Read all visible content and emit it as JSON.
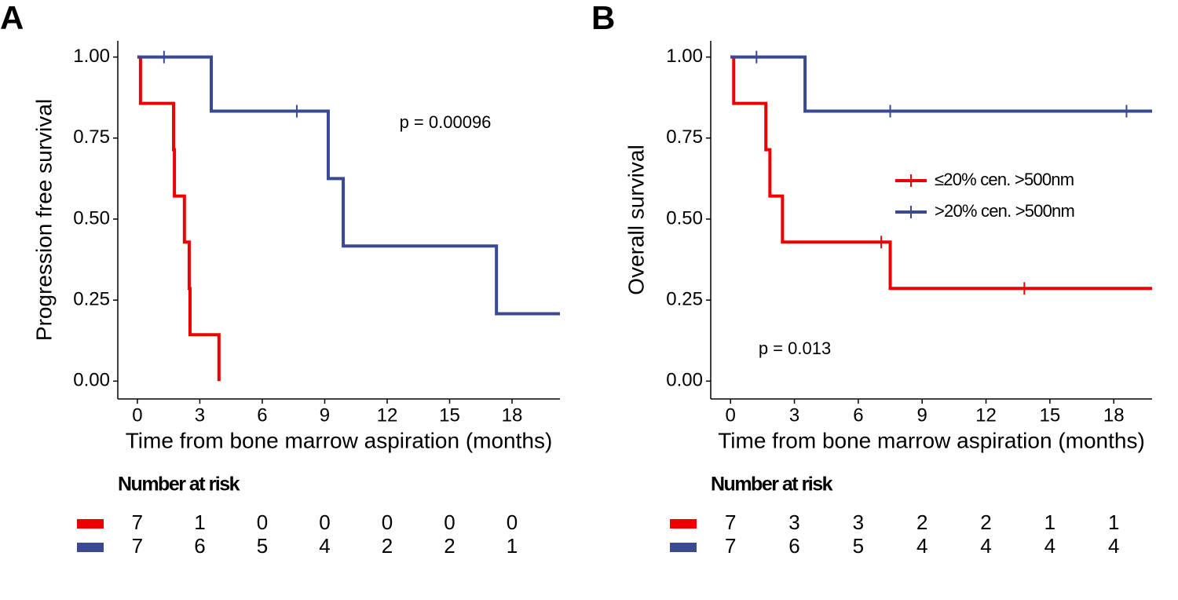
{
  "chart_data": [
    {
      "type": "step",
      "panel": "A",
      "ylabel": "Progression free survival",
      "xlabel": "Time from bone marrow aspiration (months)",
      "annotation": "p = 0.00096",
      "xlim": [
        -0.94,
        20.3
      ],
      "ylim": [
        -0.055,
        1.05
      ],
      "xticks": [
        0,
        3,
        6,
        9,
        12,
        15,
        18
      ],
      "yticks": [
        {
          "value": 0,
          "label": "0.00"
        },
        {
          "value": 0.25,
          "label": "0.25"
        },
        {
          "value": 0.5,
          "label": "0.50"
        },
        {
          "value": 0.75,
          "label": "0.75"
        },
        {
          "value": 1,
          "label": "1.00"
        }
      ],
      "series": [
        {
          "color": "#ee0000",
          "x": [
            0,
            0.15,
            1.74,
            1.78,
            2.26,
            2.49,
            2.53,
            3.92
          ],
          "values": [
            1,
            0.857,
            0.714,
            0.571,
            0.429,
            0.286,
            0.143,
            0
          ],
          "censor_x": [],
          "censor_values": []
        },
        {
          "color": "#3b4992",
          "x": [
            0,
            3.55,
            9.17,
            9.89,
            17.25,
            20.3
          ],
          "values": [
            1,
            0.833,
            0.625,
            0.417,
            0.208,
            0.208
          ],
          "censor_x": [
            1.28,
            7.66
          ],
          "censor_values": [
            1,
            0.833
          ]
        }
      ],
      "risk_title": "Number at risk",
      "risk": [
        [
          7,
          1,
          0,
          0,
          0,
          0,
          0
        ],
        [
          7,
          6,
          5,
          4,
          2,
          2,
          1
        ]
      ]
    },
    {
      "type": "step",
      "panel": "B",
      "ylabel": "Overall survival",
      "xlabel": "Time from bone marrow aspiration (months)",
      "annotation": "p = 0.013",
      "xlim": [
        -0.93,
        19.8
      ],
      "ylim": [
        -0.055,
        1.05
      ],
      "xticks": [
        0,
        3,
        6,
        9,
        12,
        15,
        18
      ],
      "yticks": [
        {
          "value": 0,
          "label": "0.00"
        },
        {
          "value": 0.25,
          "label": "0.25"
        },
        {
          "value": 0.5,
          "label": "0.50"
        },
        {
          "value": 0.75,
          "label": "0.75"
        },
        {
          "value": 1,
          "label": "1.00"
        }
      ],
      "series": [
        {
          "name": "≤20% cen. >500nm",
          "color": "#ee0000",
          "x": [
            0,
            0.15,
            1.66,
            1.85,
            2.44,
            7.5,
            19.8
          ],
          "values": [
            1,
            0.857,
            0.714,
            0.571,
            0.429,
            0.286,
            0.286
          ],
          "censor_x": [
            7.08,
            13.8
          ],
          "censor_values": [
            0.429,
            0.286
          ]
        },
        {
          "name": ">20% cen. >500nm",
          "color": "#3b4992",
          "x": [
            0,
            3.5,
            19.8
          ],
          "values": [
            1,
            0.833,
            0.833
          ],
          "censor_x": [
            1.22,
            7.5,
            18.6
          ],
          "censor_values": [
            1,
            0.833,
            0.833
          ]
        }
      ],
      "legend": true,
      "risk_title": "Number at risk",
      "risk": [
        [
          7,
          3,
          3,
          2,
          2,
          1,
          1
        ],
        [
          7,
          6,
          5,
          4,
          4,
          4,
          4
        ]
      ]
    }
  ]
}
